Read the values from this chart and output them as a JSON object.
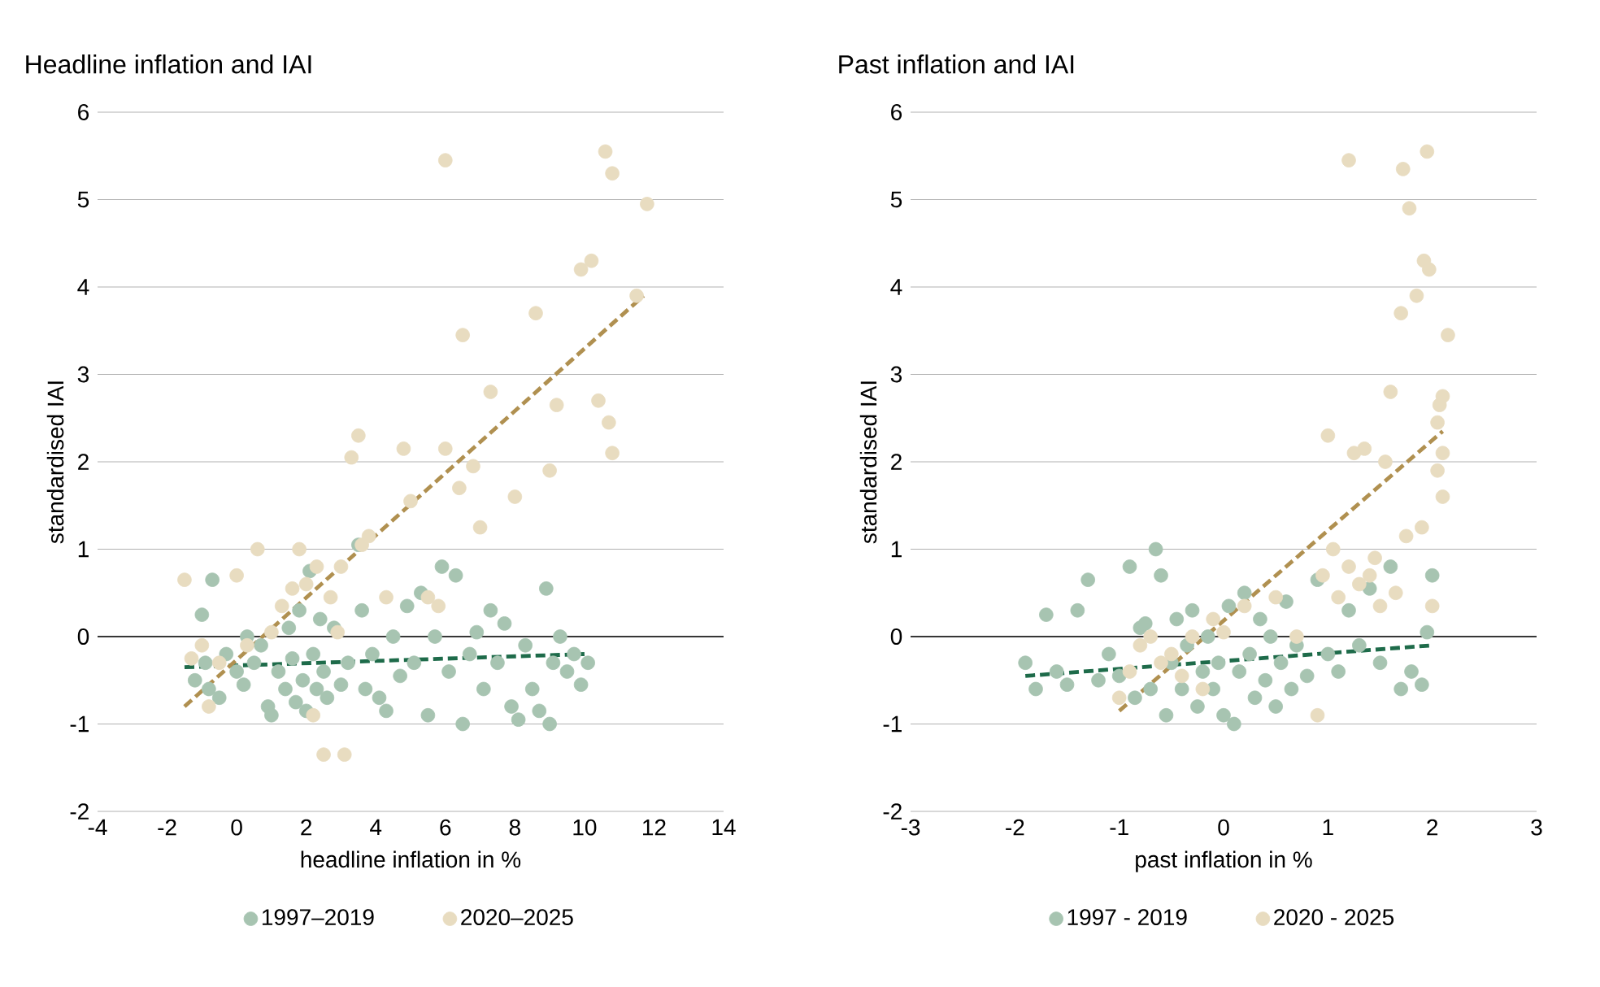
{
  "chart_data": [
    {
      "type": "scatter",
      "title": "Headline inflation and IAI",
      "xlabel": "headline inflation in %",
      "ylabel": "standardised IAI",
      "xlim": [
        -4,
        14
      ],
      "xticks": [
        -4,
        -2,
        0,
        2,
        4,
        6,
        8,
        10,
        12,
        14
      ],
      "ylim": [
        -2,
        6
      ],
      "yticks": [
        -2,
        -1,
        0,
        1,
        2,
        3,
        4,
        5,
        6
      ],
      "grid": "y",
      "legend": "bottom",
      "ref_lines": [
        {
          "axis": "y",
          "value": 0,
          "color": "#000000"
        }
      ],
      "series": [
        {
          "name": "1997–2019",
          "marker": "circle",
          "color": "#a7c4b1",
          "x": [
            -1.2,
            -1,
            -0.9,
            -0.8,
            -0.7,
            -0.5,
            -0.3,
            0,
            0.2,
            0.3,
            0.5,
            0.7,
            0.9,
            1,
            1.2,
            1.4,
            1.5,
            1.6,
            1.7,
            1.8,
            1.9,
            2,
            2.1,
            2.2,
            2.3,
            2.4,
            2.5,
            2.6,
            2.8,
            3,
            3.2,
            3.5,
            3.6,
            3.7,
            3.9,
            4.1,
            4.3,
            4.5,
            4.7,
            4.9,
            5.1,
            5.3,
            5.5,
            5.7,
            5.9,
            6.1,
            6.3,
            6.5,
            6.7,
            6.9,
            7.1,
            7.3,
            7.5,
            7.7,
            7.9,
            8.1,
            8.3,
            8.5,
            8.7,
            8.9,
            9,
            9.1,
            9.3,
            9.5,
            9.7,
            9.9,
            10.1
          ],
          "values": [
            -0.5,
            0.25,
            -0.3,
            -0.6,
            0.65,
            -0.7,
            -0.2,
            -0.4,
            -0.55,
            0,
            -0.3,
            -0.1,
            -0.8,
            -0.9,
            -0.4,
            -0.6,
            0.1,
            -0.25,
            -0.75,
            0.3,
            -0.5,
            -0.85,
            0.75,
            -0.2,
            -0.6,
            0.2,
            -0.4,
            -0.7,
            0.1,
            -0.55,
            -0.3,
            1.05,
            0.3,
            -0.6,
            -0.2,
            -0.7,
            -0.85,
            0,
            -0.45,
            0.35,
            -0.3,
            0.5,
            -0.9,
            0,
            0.8,
            -0.4,
            0.7,
            -1,
            -0.2,
            0.05,
            -0.6,
            0.3,
            -0.3,
            0.15,
            -0.8,
            -0.95,
            -0.1,
            -0.6,
            -0.85,
            0.55,
            -1,
            -0.3,
            0,
            -0.4,
            -0.2,
            -0.55,
            -0.3
          ]
        },
        {
          "name": "2020–2025",
          "marker": "circle",
          "color": "#e8dcc0",
          "x": [
            -1.5,
            -1.3,
            -1,
            -0.8,
            -0.5,
            0,
            0.3,
            0.6,
            1,
            1.3,
            1.6,
            1.8,
            2,
            2.2,
            2.3,
            2.5,
            2.7,
            2.9,
            3,
            3.1,
            3.3,
            3.5,
            3.6,
            3.8,
            4.3,
            4.8,
            5,
            5.5,
            5.8,
            6,
            6,
            6.4,
            6.5,
            6.8,
            7,
            7.3,
            8,
            8.6,
            9,
            9.2,
            9.9,
            10.2,
            10.4,
            10.6,
            10.7,
            10.8,
            10.8,
            11.5,
            11.8
          ],
          "values": [
            0.65,
            -0.25,
            -0.1,
            -0.8,
            -0.3,
            0.7,
            -0.1,
            1,
            0.05,
            0.35,
            0.55,
            1,
            0.6,
            -0.9,
            0.8,
            -1.35,
            0.45,
            0.05,
            0.8,
            -1.35,
            2.05,
            2.3,
            1.05,
            1.15,
            0.45,
            2.15,
            1.55,
            0.45,
            0.35,
            5.45,
            2.15,
            1.7,
            3.45,
            1.95,
            1.25,
            2.8,
            1.6,
            3.7,
            1.9,
            2.65,
            4.2,
            4.3,
            2.7,
            5.55,
            2.45,
            5.3,
            2.1,
            3.9,
            4.95
          ]
        },
        {
          "type": "line",
          "marker": "none",
          "line_style": "dashed",
          "color": "#1e6b4a",
          "x": [
            -1.5,
            10
          ],
          "values": [
            -0.35,
            -0.2
          ]
        },
        {
          "type": "line",
          "marker": "none",
          "line_style": "dashed",
          "color": "#b09050",
          "x": [
            -1.5,
            11.7
          ],
          "values": [
            -0.8,
            3.9
          ]
        }
      ]
    },
    {
      "type": "scatter",
      "title": "Past inflation and IAI",
      "xlabel": "past inflation in %",
      "ylabel": "standardised IAI",
      "xlim": [
        -3,
        3
      ],
      "xticks": [
        -3,
        -2,
        -1,
        0,
        1,
        2,
        3
      ],
      "ylim": [
        -2,
        6
      ],
      "yticks": [
        -2,
        -1,
        0,
        1,
        2,
        3,
        4,
        5,
        6
      ],
      "grid": "y",
      "legend": "bottom",
      "ref_lines": [
        {
          "axis": "y",
          "value": 0,
          "color": "#000000"
        }
      ],
      "series": [
        {
          "name": "1997 - 2019",
          "marker": "circle",
          "color": "#a7c4b1",
          "x": [
            -1.9,
            -1.8,
            -1.7,
            -1.6,
            -1.5,
            -1.4,
            -1.3,
            -1.2,
            -1.1,
            -1,
            -0.9,
            -0.85,
            -0.8,
            -0.75,
            -0.7,
            -0.65,
            -0.6,
            -0.55,
            -0.5,
            -0.45,
            -0.4,
            -0.35,
            -0.3,
            -0.25,
            -0.2,
            -0.15,
            -0.1,
            -0.05,
            0,
            0.05,
            0.1,
            0.15,
            0.2,
            0.25,
            0.3,
            0.35,
            0.4,
            0.45,
            0.5,
            0.55,
            0.6,
            0.65,
            0.7,
            0.8,
            0.9,
            1,
            1.1,
            1.2,
            1.3,
            1.4,
            1.5,
            1.6,
            1.7,
            1.8,
            1.9,
            1.95,
            2
          ],
          "values": [
            -0.3,
            -0.6,
            0.25,
            -0.4,
            -0.55,
            0.3,
            0.65,
            -0.5,
            -0.2,
            -0.45,
            0.8,
            -0.7,
            0.1,
            0.15,
            -0.6,
            1,
            0.7,
            -0.9,
            -0.3,
            0.2,
            -0.6,
            -0.1,
            0.3,
            -0.8,
            -0.4,
            0,
            -0.6,
            -0.3,
            -0.9,
            0.35,
            -1,
            -0.4,
            0.5,
            -0.2,
            -0.7,
            0.2,
            -0.5,
            0,
            -0.8,
            -0.3,
            0.4,
            -0.6,
            -0.1,
            -0.45,
            0.65,
            -0.2,
            -0.4,
            0.3,
            -0.1,
            0.55,
            -0.3,
            0.8,
            -0.6,
            -0.4,
            -0.55,
            0.05,
            0.7
          ]
        },
        {
          "name": "2020 - 2025",
          "marker": "circle",
          "color": "#e8dcc0",
          "x": [
            -1,
            -0.9,
            -0.8,
            -0.7,
            -0.6,
            -0.5,
            -0.4,
            -0.3,
            -0.2,
            -0.1,
            0,
            0.2,
            0.5,
            0.7,
            0.9,
            0.95,
            1,
            1.05,
            1.1,
            1.2,
            1.2,
            1.25,
            1.3,
            1.35,
            1.4,
            1.45,
            1.5,
            1.55,
            1.6,
            1.65,
            1.7,
            1.72,
            1.75,
            1.78,
            1.85,
            1.9,
            1.92,
            1.95,
            1.97,
            2,
            2.05,
            2.05,
            2.07,
            2.1,
            2.1,
            2.15,
            2.1
          ],
          "values": [
            -0.7,
            -0.4,
            -0.1,
            0,
            -0.3,
            -0.2,
            -0.45,
            0,
            -0.6,
            0.2,
            0.05,
            0.35,
            0.45,
            0,
            -0.9,
            0.7,
            2.3,
            1,
            0.45,
            5.45,
            0.8,
            2.1,
            0.6,
            2.15,
            0.7,
            0.9,
            0.35,
            2,
            2.8,
            0.5,
            3.7,
            5.35,
            1.15,
            4.9,
            3.9,
            1.25,
            4.3,
            5.55,
            4.2,
            0.35,
            2.45,
            1.9,
            2.65,
            2.1,
            1.6,
            3.45,
            2.75
          ]
        },
        {
          "type": "line",
          "marker": "none",
          "line_style": "dashed",
          "color": "#1e6b4a",
          "x": [
            -1.9,
            2
          ],
          "values": [
            -0.45,
            -0.1
          ]
        },
        {
          "type": "line",
          "marker": "none",
          "line_style": "dashed",
          "color": "#b09050",
          "x": [
            -1,
            2.1
          ],
          "values": [
            -0.85,
            2.35
          ]
        }
      ]
    }
  ]
}
